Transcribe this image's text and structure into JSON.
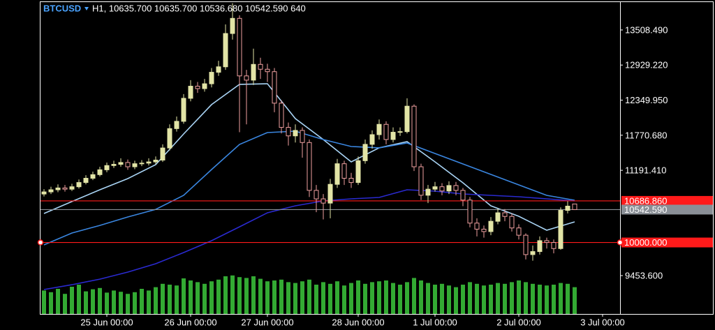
{
  "chart_data": {
    "type": "candlestick",
    "symbol": "BTCUSD",
    "title": "H1, 10635.700 10635.700 10536.680 10542.590 640",
    "xlim": [
      -0.5,
      82.5
    ],
    "ylim": [
      8820,
      13980
    ],
    "volume_ylim": [
      0,
      1000
    ],
    "yticks": [
      {
        "value": 13508.49,
        "label": "13508.490"
      },
      {
        "value": 12929.22,
        "label": "12929.220"
      },
      {
        "value": 12349.95,
        "label": "12349.950"
      },
      {
        "value": 11770.68,
        "label": "11770.680"
      },
      {
        "value": 11191.41,
        "label": "11191.410"
      },
      {
        "value": 9453.6,
        "label": "9453.600"
      }
    ],
    "xticks": [
      {
        "value": 9,
        "label": "25 Jun 00:00"
      },
      {
        "value": 21,
        "label": "26 Jun 00:00"
      },
      {
        "value": 32,
        "label": "27 Jun 00:00"
      },
      {
        "value": 45,
        "label": "28 Jun 00:00"
      },
      {
        "value": 56,
        "label": "1 Jul 00:00"
      },
      {
        "value": 68,
        "label": "2 Jul 00:00"
      },
      {
        "value": 80,
        "label": "3 Jul 00:00"
      }
    ],
    "up_color": "#e2e4a6",
    "down_color": "#f0a0a0",
    "volume_color": "#33aa33",
    "open": [
      10800,
      10835,
      10870,
      10900,
      10880,
      10920,
      10990,
      11060,
      11120,
      11200,
      11270,
      11290,
      11320,
      11250,
      11300,
      11310,
      11330,
      11360,
      11560,
      11880,
      12000,
      12380,
      12580,
      12540,
      12620,
      12810,
      12900,
      13450,
      13700,
      12750,
      12680,
      12940,
      12860,
      12820,
      12300,
      11900,
      11760,
      11850,
      11650,
      10860,
      10720,
      10650,
      10960,
      11300,
      11060,
      10990,
      11350,
      11620,
      11780,
      11950,
      11700,
      11820,
      11830,
      12250,
      11250,
      10780,
      10880,
      10920,
      10850,
      10940,
      10860,
      10700,
      10320,
      10220,
      10180,
      10350,
      10490,
      10430,
      10240,
      10120,
      9800,
      9850,
      10030,
      10000,
      9900,
      10530,
      10635.7
    ],
    "high": [
      10880,
      10920,
      10960,
      10950,
      10970,
      11040,
      11110,
      11170,
      11250,
      11320,
      11350,
      11390,
      11370,
      11350,
      11360,
      11390,
      11420,
      11620,
      11950,
      12080,
      12450,
      12680,
      12650,
      12700,
      12880,
      13000,
      13600,
      13950,
      13750,
      12850,
      13200,
      13050,
      12950,
      12880,
      12350,
      11980,
      11950,
      11900,
      11700,
      10950,
      10800,
      11050,
      11380,
      11350,
      11150,
      11420,
      11700,
      11850,
      12030,
      12000,
      11900,
      11900,
      12380,
      12280,
      11300,
      10950,
      11000,
      10980,
      11010,
      11000,
      10900,
      10750,
      10400,
      10280,
      10420,
      10560,
      10550,
      10480,
      10300,
      10150,
      9950,
      10100,
      10080,
      10050,
      10580,
      10680,
      10635.7
    ],
    "low": [
      10760,
      10800,
      10830,
      10840,
      10850,
      10890,
      10960,
      11030,
      11090,
      11160,
      11230,
      11250,
      11200,
      11210,
      11260,
      11270,
      11290,
      11330,
      11520,
      11830,
      11960,
      12330,
      12470,
      12490,
      12560,
      12750,
      12850,
      13350,
      11820,
      11950,
      12600,
      12700,
      12650,
      12150,
      11800,
      11600,
      11650,
      11400,
      10750,
      10500,
      10380,
      10400,
      10900,
      10950,
      10900,
      10950,
      11300,
      11550,
      11700,
      11620,
      11650,
      11760,
      11800,
      11180,
      10700,
      10650,
      10840,
      10780,
      10800,
      10780,
      10600,
      10250,
      10100,
      10080,
      10120,
      10300,
      10350,
      10180,
      10050,
      9720,
      9700,
      9800,
      9900,
      9820,
      9880,
      10480,
      10536.68
    ],
    "close": [
      10835,
      10870,
      10900,
      10880,
      10920,
      10990,
      11060,
      11120,
      11200,
      11270,
      11290,
      11320,
      11250,
      11300,
      11310,
      11330,
      11360,
      11560,
      11880,
      12000,
      12380,
      12580,
      12540,
      12620,
      12810,
      12900,
      13450,
      13700,
      12750,
      12680,
      12940,
      12860,
      12820,
      12300,
      11900,
      11760,
      11850,
      11650,
      10860,
      10720,
      10650,
      10960,
      11300,
      11060,
      10990,
      11350,
      11620,
      11780,
      11950,
      11700,
      11820,
      11830,
      12250,
      11250,
      10780,
      10880,
      10920,
      10850,
      10940,
      10860,
      10700,
      10320,
      10220,
      10180,
      10350,
      10490,
      10430,
      10240,
      10120,
      9800,
      9850,
      10030,
      10000,
      9900,
      10530,
      10600,
      10542.59
    ],
    "volume": [
      560,
      520,
      600,
      480,
      650,
      700,
      540,
      590,
      620,
      510,
      560,
      530,
      480,
      520,
      600,
      560,
      640,
      720,
      700,
      680,
      850,
      800,
      760,
      720,
      780,
      820,
      900,
      920,
      880,
      860,
      900,
      840,
      780,
      800,
      820,
      760,
      740,
      780,
      820,
      700,
      760,
      720,
      780,
      680,
      740,
      800,
      720,
      760,
      780,
      800,
      740,
      700,
      760,
      860,
      800,
      740,
      700,
      720,
      680,
      640,
      700,
      760,
      720,
      680,
      700,
      740,
      720,
      760,
      800,
      760,
      720,
      700,
      680,
      700,
      740,
      720,
      640
    ],
    "series": [
      {
        "color": "#a9d4f5",
        "x": [
          0,
          4,
          8,
          12,
          16,
          20,
          24,
          28,
          32,
          36,
          40,
          44,
          48,
          52,
          56,
          60,
          64,
          68,
          72,
          76
        ],
        "values": [
          10478,
          10675,
          10870,
          11055,
          11285,
          11792,
          12276,
          12610,
          12621,
          12045,
          11700,
          11331,
          11562,
          11665,
          11331,
          10985,
          10605,
          10432,
          10202,
          10340
        ]
      },
      {
        "color": "#3a86e0",
        "x": [
          0,
          4,
          8,
          12,
          16,
          20,
          24,
          28,
          32,
          36,
          40,
          44,
          48,
          52,
          56,
          60,
          64,
          68,
          72,
          76
        ],
        "values": [
          9960,
          10156,
          10282,
          10421,
          10547,
          10778,
          11204,
          11619,
          11815,
          11838,
          11700,
          11584,
          11562,
          11642,
          11469,
          11296,
          11123,
          10951,
          10778,
          10697
        ]
      },
      {
        "color": "#2a2ad0",
        "x": [
          0,
          4,
          8,
          12,
          16,
          20,
          24,
          28,
          32,
          36,
          40,
          44,
          48,
          52,
          56,
          60,
          64,
          68,
          72,
          76
        ],
        "values": [
          9223,
          9303,
          9395,
          9511,
          9649,
          9833,
          10029,
          10259,
          10490,
          10605,
          10686,
          10720,
          10743,
          10870,
          10847,
          10801,
          10778,
          10755,
          10720,
          10686
        ]
      }
    ],
    "hlines": [
      {
        "value": 10686.86,
        "label": "10686.860",
        "color": "#ff1a1a",
        "label_bg": "#ff1a1a",
        "label_color": "#ffffff"
      },
      {
        "value": 10542.59,
        "label": "10542.590",
        "color": "#8a8f96",
        "label_bg": "#8a8f96",
        "label_color": "#ffffff"
      },
      {
        "value": 10000,
        "label": "10000.000",
        "color": "#ff1a1a",
        "label_bg": "#ff1a1a",
        "label_color": "#ffffff"
      }
    ]
  }
}
